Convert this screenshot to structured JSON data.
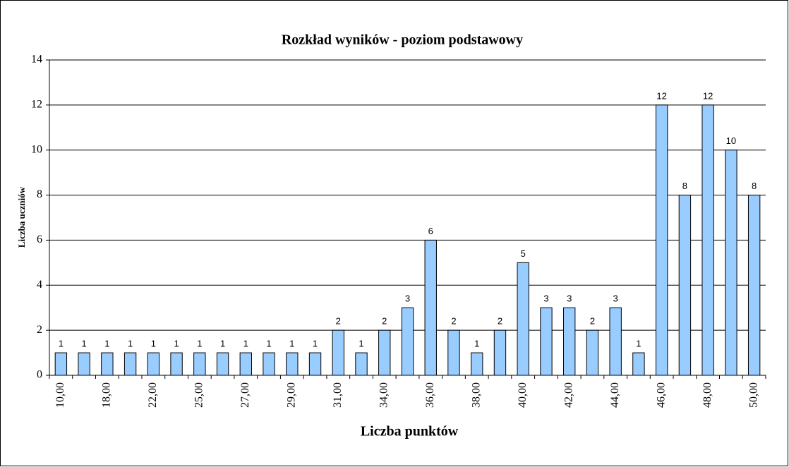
{
  "chart_data": {
    "type": "bar",
    "title": "Rozkład wyników - poziom podstawowy",
    "xlabel": "Liczba punktów",
    "ylabel": "Liczba uczniów",
    "categories": [
      "10,00",
      null,
      "18,00",
      null,
      "22,00",
      null,
      "25,00",
      null,
      "27,00",
      null,
      "29,00",
      null,
      "31,00",
      null,
      "34,00",
      null,
      "36,00",
      null,
      "38,00",
      null,
      "40,00",
      null,
      "42,00",
      null,
      "44,00",
      null,
      "46,00",
      null,
      "48,00",
      null,
      "50,00"
    ],
    "values": [
      1,
      1,
      1,
      1,
      1,
      1,
      1,
      1,
      1,
      1,
      1,
      1,
      2,
      1,
      2,
      3,
      6,
      2,
      1,
      2,
      5,
      3,
      3,
      2,
      3,
      1,
      12,
      8,
      12,
      10,
      8
    ],
    "color": "#99ccff",
    "ylim": [
      0,
      14
    ],
    "yticks": [
      0,
      2,
      4,
      6,
      8,
      10,
      12,
      14
    ],
    "grid": true
  }
}
